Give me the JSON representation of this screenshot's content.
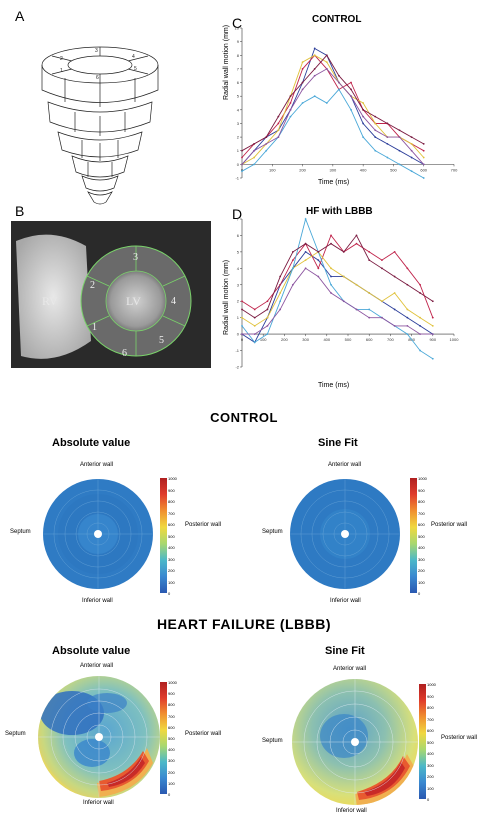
{
  "panels": {
    "a": {
      "label": "A"
    },
    "b": {
      "label": "B",
      "rv": "RV",
      "lv": "LV",
      "segments": [
        "1",
        "2",
        "3",
        "4",
        "5",
        "6"
      ]
    },
    "c": {
      "label": "C",
      "title": "CONTROL",
      "ylabel": "Radial wall motion (mm)",
      "xlabel": "Time (ms)"
    },
    "d": {
      "label": "D",
      "title": "HF with LBBB",
      "ylabel": "Radial wall motion (mm)",
      "xlabel": "Time (ms)"
    }
  },
  "sections": {
    "control": "CONTROL",
    "hf": "HEART FAILURE (LBBB)"
  },
  "maps": {
    "absolute_title": "Absolute value",
    "sine_title": "Sine Fit",
    "anterior": "Anterior wall",
    "inferior": "Inferior wall",
    "septum": "Septum",
    "posterior": "Posterior wall"
  },
  "colors": {
    "series": [
      "#2c3e9a",
      "#c0244b",
      "#e0c23c",
      "#4aa8d8",
      "#7a1a40",
      "#8c55a0"
    ]
  },
  "chart_data": [
    {
      "type": "line",
      "title": "CONTROL",
      "xlabel": "Time (ms)",
      "ylabel": "Radial wall motion (mm)",
      "xlim": [
        0,
        700
      ],
      "ylim": [
        -1,
        10
      ],
      "xticks": [
        0,
        100,
        200,
        300,
        400,
        500,
        600,
        700
      ],
      "yticks": [
        -1,
        0,
        1,
        2,
        3,
        4,
        5,
        6,
        7,
        8,
        9,
        10
      ],
      "series": [
        {
          "x": [
            0,
            40,
            80,
            120,
            160,
            200,
            240,
            280,
            320,
            360,
            400,
            440,
            480,
            520,
            560,
            600
          ],
          "y": [
            0,
            1,
            2,
            2.5,
            4,
            6,
            8.5,
            8,
            6,
            5,
            3,
            2,
            1.5,
            1,
            0.5,
            0
          ]
        },
        {
          "x": [
            0,
            40,
            80,
            120,
            160,
            200,
            240,
            280,
            320,
            360,
            400,
            440,
            480,
            520,
            560,
            600
          ],
          "y": [
            0.5,
            1.5,
            2,
            3,
            4.5,
            7,
            8,
            7,
            5.5,
            6,
            4,
            3,
            3,
            2,
            1.5,
            1
          ]
        },
        {
          "x": [
            0,
            40,
            80,
            120,
            160,
            200,
            240,
            280,
            320,
            360,
            400,
            440,
            480,
            520,
            560,
            600
          ],
          "y": [
            0,
            0.5,
            1.5,
            2.5,
            5,
            7.5,
            8,
            7.5,
            6,
            5,
            4.5,
            3,
            2,
            2,
            1.5,
            0.5
          ]
        },
        {
          "x": [
            0,
            40,
            80,
            120,
            160,
            200,
            240,
            280,
            320,
            360,
            400,
            440,
            480,
            520,
            560,
            600
          ],
          "y": [
            -0.5,
            0,
            1,
            2,
            3.5,
            4.5,
            5,
            4.5,
            5.5,
            4,
            2,
            1,
            0.5,
            0,
            -0.5,
            -1
          ]
        },
        {
          "x": [
            0,
            40,
            80,
            120,
            160,
            200,
            240,
            280,
            320,
            360,
            400,
            440,
            480,
            520,
            560,
            600
          ],
          "y": [
            1,
            1.5,
            2,
            3.5,
            5,
            6,
            7,
            8,
            6.5,
            5.5,
            4,
            3.5,
            3,
            2.5,
            2,
            1.5
          ]
        },
        {
          "x": [
            0,
            40,
            80,
            120,
            160,
            200,
            240,
            280,
            320,
            360,
            400,
            440,
            480,
            520,
            560,
            600
          ],
          "y": [
            0,
            1,
            1.5,
            2,
            4,
            5.5,
            6.5,
            7,
            6,
            5,
            3.5,
            2.5,
            2,
            2,
            1,
            0
          ]
        }
      ]
    },
    {
      "type": "line",
      "title": "HF with LBBB",
      "xlabel": "Time (ms)",
      "ylabel": "Radial wall motion (mm)",
      "xlim": [
        0,
        1000
      ],
      "ylim": [
        -2,
        7
      ],
      "xticks": [
        0,
        100,
        200,
        300,
        400,
        500,
        600,
        700,
        800,
        900,
        1000
      ],
      "yticks": [
        -2,
        -1,
        0,
        1,
        2,
        3,
        4,
        5,
        6,
        7
      ],
      "series": [
        {
          "x": [
            0,
            60,
            120,
            180,
            240,
            300,
            360,
            420,
            480,
            540,
            600,
            660,
            720,
            780,
            840,
            900
          ],
          "y": [
            0,
            -0.5,
            1,
            3,
            4,
            5,
            4.5,
            3.5,
            3.5,
            3,
            2.5,
            2,
            1.5,
            1,
            0.5,
            0
          ]
        },
        {
          "x": [
            0,
            60,
            120,
            180,
            240,
            300,
            360,
            420,
            480,
            540,
            600,
            660,
            720,
            780,
            840,
            900
          ],
          "y": [
            2,
            1.5,
            2,
            3,
            4.5,
            5.5,
            4,
            6,
            5,
            5.5,
            5,
            4.5,
            5,
            4,
            3,
            1
          ]
        },
        {
          "x": [
            0,
            60,
            120,
            180,
            240,
            300,
            360,
            420,
            480,
            540,
            600,
            660,
            720,
            780,
            840,
            900
          ],
          "y": [
            1,
            0.5,
            1,
            2.5,
            4,
            4.5,
            5,
            4,
            3.5,
            3,
            2.5,
            2,
            2.5,
            1.5,
            1,
            0.5
          ]
        },
        {
          "x": [
            0,
            60,
            120,
            180,
            240,
            300,
            360,
            420,
            480,
            540,
            600,
            660,
            720,
            780,
            840,
            900
          ],
          "y": [
            0.5,
            -0.5,
            0,
            2,
            4,
            7,
            5,
            3,
            2,
            1.5,
            1.5,
            1,
            0.5,
            0,
            -1,
            -1.5
          ]
        },
        {
          "x": [
            0,
            60,
            120,
            180,
            240,
            300,
            360,
            420,
            480,
            540,
            600,
            660,
            720,
            780,
            840,
            900
          ],
          "y": [
            1.5,
            1,
            1.5,
            3.5,
            5,
            5.5,
            5,
            5.5,
            5,
            6,
            4.5,
            4,
            3.5,
            3,
            2.5,
            2
          ]
        },
        {
          "x": [
            0,
            60,
            120,
            180,
            240,
            300,
            360,
            420,
            480,
            540,
            600,
            660,
            720,
            780,
            840,
            900
          ],
          "y": [
            0,
            0,
            0.5,
            1.5,
            3,
            4,
            3.5,
            2.5,
            2,
            1.5,
            1,
            1,
            0.5,
            0.5,
            0,
            0
          ]
        }
      ]
    }
  ],
  "colorbars": {
    "control_absolute": [
      "1000",
      "900",
      "800",
      "700",
      "600",
      "500",
      "400",
      "300",
      "200",
      "100",
      "0"
    ],
    "control_sine": [
      "1000",
      "900",
      "800",
      "700",
      "600",
      "500",
      "400",
      "300",
      "200",
      "100",
      "0"
    ],
    "hf_absolute": [
      "1000",
      "900",
      "800",
      "700",
      "600",
      "500",
      "400",
      "300",
      "200",
      "100",
      "0"
    ],
    "hf_sine": [
      "1000",
      "900",
      "800",
      "700",
      "600",
      "500",
      "400",
      "300",
      "200",
      "100",
      "0"
    ]
  }
}
